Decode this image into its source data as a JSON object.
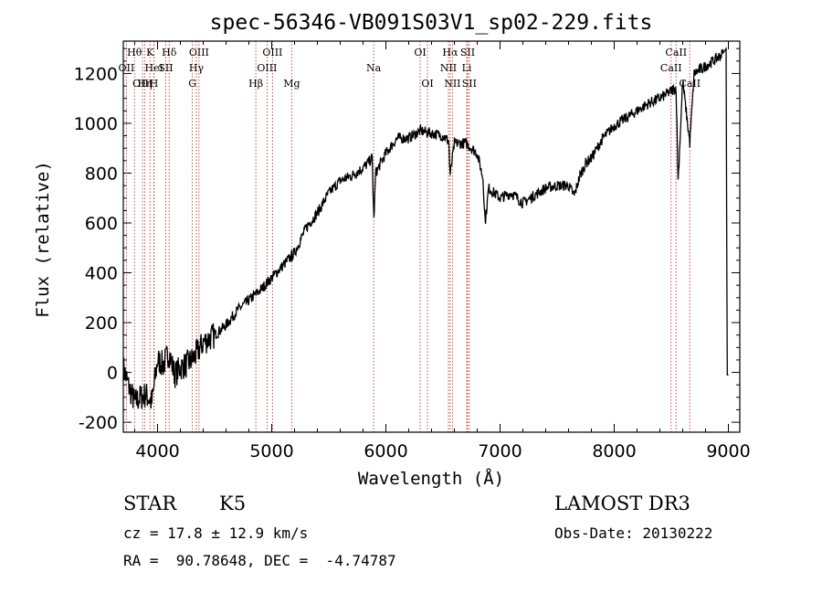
{
  "chart_data": {
    "type": "line",
    "title": "spec-56346-VB091S03V1_sp02-229.fits",
    "xlabel": "Wavelength (Å)",
    "ylabel": "Flux (relative)",
    "xlim": [
      3700,
      9100
    ],
    "ylim": [
      -240,
      1330
    ],
    "xticks": [
      4000,
      5000,
      6000,
      7000,
      8000,
      9000
    ],
    "yticks": [
      -200,
      0,
      200,
      400,
      600,
      800,
      1000,
      1200
    ],
    "grid": false,
    "series": [
      {
        "name": "spectrum",
        "x": [
          3700,
          3750,
          3800,
          3850,
          3900,
          3950,
          4000,
          4050,
          4100,
          4150,
          4200,
          4250,
          4300,
          4350,
          4400,
          4500,
          4600,
          4700,
          4800,
          4900,
          5000,
          5100,
          5200,
          5300,
          5400,
          5500,
          5600,
          5700,
          5800,
          5880,
          5895,
          5910,
          6000,
          6100,
          6200,
          6300,
          6400,
          6500,
          6550,
          6563,
          6600,
          6700,
          6800,
          6850,
          6870,
          6900,
          7000,
          7100,
          7200,
          7300,
          7400,
          7500,
          7600,
          7650,
          7700,
          7750,
          7800,
          7900,
          8000,
          8100,
          8200,
          8300,
          8400,
          8500,
          8542,
          8560,
          8600,
          8662,
          8700,
          8800,
          8900,
          8950,
          8980,
          8990,
          9000
        ],
        "y": [
          20,
          -60,
          -120,
          -100,
          -90,
          -120,
          50,
          30,
          80,
          -10,
          20,
          30,
          50,
          80,
          120,
          150,
          190,
          250,
          290,
          330,
          380,
          430,
          480,
          580,
          640,
          720,
          770,
          790,
          820,
          860,
          610,
          800,
          880,
          940,
          940,
          970,
          960,
          950,
          930,
          790,
          920,
          920,
          880,
          780,
          600,
          740,
          700,
          720,
          680,
          710,
          740,
          750,
          750,
          710,
          790,
          840,
          860,
          940,
          990,
          1020,
          1050,
          1080,
          1100,
          1130,
          1140,
          770,
          1170,
          920,
          1200,
          1230,
          1260,
          1280,
          1300,
          -10,
          -10
        ]
      }
    ],
    "lines": [
      {
        "name": "Hθ",
        "w": 3798,
        "pos": "top"
      },
      {
        "name": "OII",
        "w": 3727,
        "pos": "mid"
      },
      {
        "name": "OIII",
        "w": 3869,
        "pos": "bot"
      },
      {
        "name": "Hη",
        "w": 3889,
        "pos": "bot"
      },
      {
        "name": "K",
        "w": 3934,
        "pos": "top"
      },
      {
        "name": "HeI",
        "w": 3970,
        "pos": "mid"
      },
      {
        "name": "H",
        "w": 3968,
        "pos": "bot"
      },
      {
        "name": "SII",
        "w": 4072,
        "pos": "mid"
      },
      {
        "name": "Hδ",
        "w": 4102,
        "pos": "top"
      },
      {
        "name": "OIII",
        "w": 4363,
        "pos": "top"
      },
      {
        "name": "Hγ",
        "w": 4340,
        "pos": "mid"
      },
      {
        "name": "G",
        "w": 4305,
        "pos": "bot"
      },
      {
        "name": "Hβ",
        "w": 4861,
        "pos": "bot"
      },
      {
        "name": "OIII",
        "w": 5007,
        "pos": "top"
      },
      {
        "name": "OIII",
        "w": 4959,
        "pos": "mid"
      },
      {
        "name": "Mg",
        "w": 5175,
        "pos": "bot"
      },
      {
        "name": "Na",
        "w": 5893,
        "pos": "mid"
      },
      {
        "name": "OI",
        "w": 6300,
        "pos": "top"
      },
      {
        "name": "OI",
        "w": 6364,
        "pos": "bot"
      },
      {
        "name": "Hα",
        "w": 6563,
        "pos": "top"
      },
      {
        "name": "NII",
        "w": 6548,
        "pos": "mid"
      },
      {
        "name": "NII",
        "w": 6583,
        "pos": "bot"
      },
      {
        "name": "SII",
        "w": 6716,
        "pos": "top"
      },
      {
        "name": "Li",
        "w": 6708,
        "pos": "mid"
      },
      {
        "name": "SII",
        "w": 6731,
        "pos": "bot"
      },
      {
        "name": "CaII",
        "w": 8542,
        "pos": "top"
      },
      {
        "name": "CaII",
        "w": 8498,
        "pos": "mid"
      },
      {
        "name": "CaII",
        "w": 8662,
        "pos": "bot"
      }
    ]
  },
  "info": {
    "object_type": "STAR",
    "subclass": "K5",
    "survey": "LAMOST DR3",
    "cz": "cz = 17.8 ± 12.9 km/s",
    "obs_date": "Obs-Date: 20130222",
    "radec": "RA =  90.78648, DEC =  -4.74787"
  }
}
